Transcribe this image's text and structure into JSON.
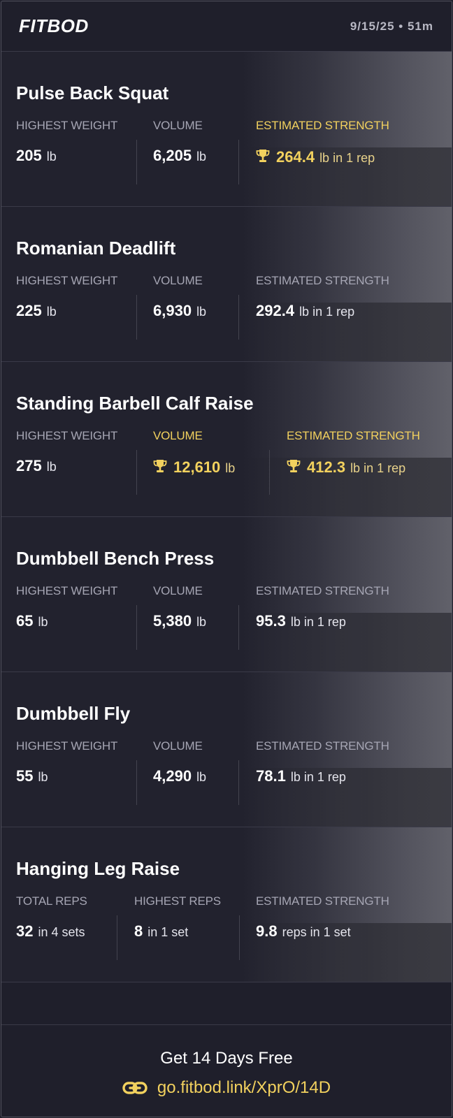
{
  "header": {
    "logo": "FITBOD",
    "meta": "9/15/25 • 51m"
  },
  "accent_color": "#f2d15e",
  "exercises": [
    {
      "title": "Pulse Back Squat",
      "stats": [
        {
          "label": "HIGHEST WEIGHT",
          "value": "205",
          "unit": "lb",
          "highlight": false
        },
        {
          "label": "VOLUME",
          "value": "6,205",
          "unit": "lb",
          "highlight": false
        },
        {
          "label": "ESTIMATED STRENGTH",
          "value": "264.4",
          "unit": "lb in 1 rep",
          "highlight": true,
          "icon": "trophy-icon"
        }
      ]
    },
    {
      "title": "Romanian Deadlift",
      "stats": [
        {
          "label": "HIGHEST WEIGHT",
          "value": "225",
          "unit": "lb",
          "highlight": false
        },
        {
          "label": "VOLUME",
          "value": "6,930",
          "unit": "lb",
          "highlight": false
        },
        {
          "label": "ESTIMATED STRENGTH",
          "value": "292.4",
          "unit": "lb in 1 rep",
          "highlight": false
        }
      ]
    },
    {
      "title": "Standing Barbell Calf Raise",
      "stats": [
        {
          "label": "HIGHEST WEIGHT",
          "value": "275",
          "unit": "lb",
          "highlight": false
        },
        {
          "label": "VOLUME",
          "value": "12,610",
          "unit": "lb",
          "highlight": true,
          "icon": "trophy-icon"
        },
        {
          "label": "ESTIMATED STRENGTH",
          "value": "412.3",
          "unit": "lb in 1 rep",
          "highlight": true,
          "icon": "trophy-icon"
        }
      ]
    },
    {
      "title": "Dumbbell Bench Press",
      "stats": [
        {
          "label": "HIGHEST WEIGHT",
          "value": "65",
          "unit": "lb",
          "highlight": false
        },
        {
          "label": "VOLUME",
          "value": "5,380",
          "unit": "lb",
          "highlight": false
        },
        {
          "label": "ESTIMATED STRENGTH",
          "value": "95.3",
          "unit": "lb in 1 rep",
          "highlight": false
        }
      ]
    },
    {
      "title": "Dumbbell Fly",
      "stats": [
        {
          "label": "HIGHEST WEIGHT",
          "value": "55",
          "unit": "lb",
          "highlight": false
        },
        {
          "label": "VOLUME",
          "value": "4,290",
          "unit": "lb",
          "highlight": false
        },
        {
          "label": "ESTIMATED STRENGTH",
          "value": "78.1",
          "unit": "lb in 1 rep",
          "highlight": false
        }
      ]
    },
    {
      "title": "Hanging Leg Raise",
      "stats": [
        {
          "label": "TOTAL REPS",
          "value": "32",
          "unit": "in 4 sets",
          "highlight": false
        },
        {
          "label": "HIGHEST REPS",
          "value": "8",
          "unit": "in 1 set",
          "highlight": false
        },
        {
          "label": "ESTIMATED STRENGTH",
          "value": "9.8",
          "unit": "reps in 1 set",
          "highlight": false
        }
      ]
    }
  ],
  "footer": {
    "cta": "Get 14 Days Free",
    "link_icon": "link-icon",
    "link": "go.fitbod.link/XprO/14D"
  }
}
